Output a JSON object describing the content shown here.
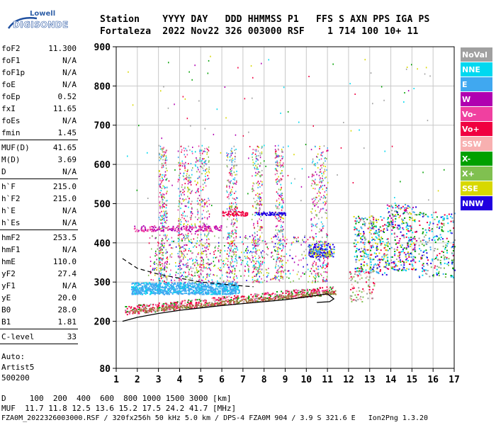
{
  "logo": {
    "line1": "Lowell",
    "line2": "DIGISONDE"
  },
  "header": {
    "line1": "Station    YYYY DAY   DDD HHMMSS P1   FFS S AXN PPS IGA PS",
    "line2": "Fortaleza  2022 Nov22 326 003000 RSF    1 714 100 10+ 11"
  },
  "params": {
    "group1": [
      {
        "label": "foF2",
        "value": "11.300"
      },
      {
        "label": "foF1",
        "value": "N/A"
      },
      {
        "label": "foF1p",
        "value": "N/A"
      },
      {
        "label": "foE",
        "value": "N/A"
      },
      {
        "label": "foEp",
        "value": "0.52"
      },
      {
        "label": "fxI",
        "value": "11.65"
      },
      {
        "label": "foEs",
        "value": "N/A"
      },
      {
        "label": "fmin",
        "value": "1.45"
      }
    ],
    "group2": [
      {
        "label": "MUF(D)",
        "value": "41.65"
      },
      {
        "label": "M(D)",
        "value": "3.69"
      },
      {
        "label": "D",
        "value": "N/A"
      }
    ],
    "group3": [
      {
        "label": "h`F",
        "value": "215.0"
      },
      {
        "label": "h`F2",
        "value": "215.0"
      },
      {
        "label": "h`E",
        "value": "N/A"
      },
      {
        "label": "h`Es",
        "value": "N/A"
      }
    ],
    "group4": [
      {
        "label": "hmF2",
        "value": "253.5"
      },
      {
        "label": "hmF1",
        "value": "N/A"
      },
      {
        "label": "hmE",
        "value": "110.0"
      },
      {
        "label": "yF2",
        "value": "27.4"
      },
      {
        "label": "yF1",
        "value": "N/A"
      },
      {
        "label": "yE",
        "value": "20.0"
      },
      {
        "label": "B0",
        "value": "28.0"
      },
      {
        "label": "B1",
        "value": "1.81"
      }
    ],
    "group5": [
      {
        "label": "C-level",
        "value": "33"
      }
    ],
    "auto_label": "Auto:",
    "auto_name": "Artist5",
    "auto_version": "500200"
  },
  "footer": {
    "line1": "D     100  200  400  600  800 1000 1500 3000 [km]",
    "line2": "MUF  11.7 11.8 12.5 13.6 15.2 17.5 24.2 41.7 [MHz]",
    "line3": "FZA0M_2022326003000.RSF / 320fx256h 50 kHz 5.0 km / DPS-4 FZA0M 904 / 3.9 S 321.6 E   Ion2Png 1.3.20"
  },
  "chart_data": {
    "type": "scatter",
    "xlabel": "",
    "ylabel": "",
    "xlim": [
      1,
      17
    ],
    "ylim": [
      80,
      900
    ],
    "xticks": [
      1,
      2,
      3,
      4,
      5,
      6,
      7,
      8,
      9,
      10,
      11,
      12,
      13,
      14,
      15,
      16,
      17
    ],
    "yticks": [
      80,
      200,
      300,
      400,
      500,
      600,
      700,
      800,
      900
    ],
    "grid": true,
    "legend_position": "right",
    "legend": [
      {
        "name": "NoVal",
        "color": "#a0a0a0",
        "text_color": "#ffffff"
      },
      {
        "name": "NNE",
        "color": "#00d8f0",
        "text_color": "#ffffff"
      },
      {
        "name": "E",
        "color": "#40a8f0",
        "text_color": "#ffffff"
      },
      {
        "name": "W",
        "color": "#b000b0",
        "text_color": "#ffffff"
      },
      {
        "name": "Vo-",
        "color": "#f040a0",
        "text_color": "#ffffff"
      },
      {
        "name": "Vo+",
        "color": "#f00040",
        "text_color": "#ffffff"
      },
      {
        "name": "SSW",
        "color": "#f8b0b0",
        "text_color": "#ffffff"
      },
      {
        "name": "X-",
        "color": "#00a000",
        "text_color": "#ffffff"
      },
      {
        "name": "X+",
        "color": "#80c050",
        "text_color": "#ffffff"
      },
      {
        "name": "SSE",
        "color": "#d8d800",
        "text_color": "#ffffff"
      },
      {
        "name": "NNW",
        "color": "#2000e0",
        "text_color": "#ffffff"
      }
    ],
    "profile_solid": {
      "x": [
        1.3,
        2,
        3,
        4,
        5,
        6,
        7,
        8,
        9,
        10,
        10.5,
        11,
        11.3,
        11.1,
        10.5
      ],
      "y": [
        200,
        210,
        220,
        228,
        234,
        240,
        245,
        250,
        255,
        262,
        266,
        270,
        257,
        250,
        248
      ]
    },
    "profile_dashed": {
      "x": [
        1.3,
        2,
        3,
        4,
        5,
        6,
        7,
        7.5
      ],
      "y": [
        360,
        335,
        320,
        310,
        300,
        295,
        290,
        288
      ]
    }
  }
}
